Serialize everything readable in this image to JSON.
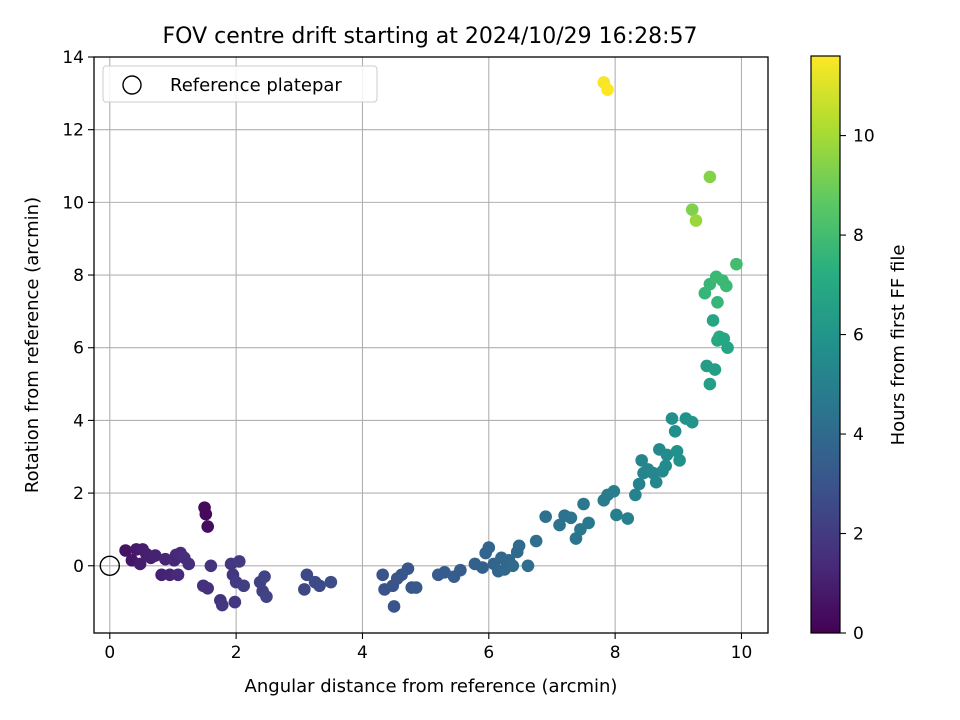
{
  "chart_data": {
    "type": "scatter",
    "title": "FOV centre drift starting at 2024/10/29 16:28:57",
    "xlabel": "Angular distance from reference (arcmin)",
    "ylabel": "Rotation from reference (arcmin)",
    "xlim": [
      -0.25,
      10.42
    ],
    "ylim": [
      -1.85,
      14.0
    ],
    "xticks": [
      0,
      2,
      4,
      6,
      8,
      10
    ],
    "yticks": [
      0,
      2,
      4,
      6,
      8,
      10,
      12,
      14
    ],
    "grid": true,
    "legend": {
      "placement": "top-left",
      "entries": [
        "Reference platepar"
      ]
    },
    "reference_point": {
      "x": 0,
      "y": 0
    },
    "colorbar": {
      "label": "Hours from first FF file",
      "colormap": "viridis",
      "range": [
        0,
        11.6
      ],
      "ticks": [
        0,
        2,
        4,
        6,
        8,
        10
      ]
    },
    "series": [
      {
        "values": [
          {
            "x": 0.25,
            "y": 0.42,
            "h": 0.6
          },
          {
            "x": 0.35,
            "y": 0.15,
            "h": 0.7
          },
          {
            "x": 0.42,
            "y": 0.45,
            "h": 0.8
          },
          {
            "x": 0.48,
            "y": 0.05,
            "h": 0.9
          },
          {
            "x": 0.52,
            "y": 0.45,
            "h": 0.9
          },
          {
            "x": 0.58,
            "y": 0.32,
            "h": 1.0
          },
          {
            "x": 0.65,
            "y": 0.22,
            "h": 1.0
          },
          {
            "x": 0.72,
            "y": 0.28,
            "h": 1.1
          },
          {
            "x": 0.82,
            "y": -0.25,
            "h": 1.1
          },
          {
            "x": 0.88,
            "y": 0.18,
            "h": 1.2
          },
          {
            "x": 0.95,
            "y": -0.25,
            "h": 1.2
          },
          {
            "x": 1.02,
            "y": 0.15,
            "h": 1.3
          },
          {
            "x": 1.05,
            "y": 0.3,
            "h": 1.3
          },
          {
            "x": 1.12,
            "y": 0.35,
            "h": 1.4
          },
          {
            "x": 1.08,
            "y": -0.25,
            "h": 1.4
          },
          {
            "x": 1.18,
            "y": 0.22,
            "h": 1.5
          },
          {
            "x": 1.25,
            "y": 0.05,
            "h": 1.5
          },
          {
            "x": 1.5,
            "y": 1.6,
            "h": 0.3
          },
          {
            "x": 1.52,
            "y": 1.42,
            "h": 0.3
          },
          {
            "x": 1.55,
            "y": 1.08,
            "h": 0.4
          },
          {
            "x": 1.48,
            "y": -0.55,
            "h": 1.6
          },
          {
            "x": 1.55,
            "y": -0.62,
            "h": 1.6
          },
          {
            "x": 1.6,
            "y": 0.0,
            "h": 1.7
          },
          {
            "x": 1.75,
            "y": -0.95,
            "h": 1.7
          },
          {
            "x": 1.78,
            "y": -1.08,
            "h": 1.8
          },
          {
            "x": 1.92,
            "y": 0.05,
            "h": 1.8
          },
          {
            "x": 1.95,
            "y": -0.25,
            "h": 1.9
          },
          {
            "x": 1.98,
            "y": -1.0,
            "h": 1.9
          },
          {
            "x": 2.0,
            "y": -0.45,
            "h": 2.0
          },
          {
            "x": 2.05,
            "y": 0.12,
            "h": 2.0
          },
          {
            "x": 2.12,
            "y": -0.55,
            "h": 2.1
          },
          {
            "x": 2.38,
            "y": -0.45,
            "h": 2.2
          },
          {
            "x": 2.42,
            "y": -0.7,
            "h": 2.2
          },
          {
            "x": 2.45,
            "y": -0.3,
            "h": 2.3
          },
          {
            "x": 2.48,
            "y": -0.85,
            "h": 2.3
          },
          {
            "x": 3.08,
            "y": -0.65,
            "h": 2.5
          },
          {
            "x": 3.12,
            "y": -0.25,
            "h": 2.5
          },
          {
            "x": 3.25,
            "y": -0.45,
            "h": 2.6
          },
          {
            "x": 3.32,
            "y": -0.55,
            "h": 2.6
          },
          {
            "x": 3.5,
            "y": -0.45,
            "h": 2.7
          },
          {
            "x": 4.32,
            "y": -0.25,
            "h": 2.9
          },
          {
            "x": 4.35,
            "y": -0.65,
            "h": 2.9
          },
          {
            "x": 4.48,
            "y": -0.55,
            "h": 3.0
          },
          {
            "x": 4.5,
            "y": -1.12,
            "h": 3.0
          },
          {
            "x": 4.55,
            "y": -0.35,
            "h": 3.0
          },
          {
            "x": 4.62,
            "y": -0.25,
            "h": 3.1
          },
          {
            "x": 4.72,
            "y": -0.08,
            "h": 3.1
          },
          {
            "x": 4.78,
            "y": -0.6,
            "h": 3.1
          },
          {
            "x": 4.85,
            "y": -0.6,
            "h": 3.2
          },
          {
            "x": 5.2,
            "y": -0.25,
            "h": 3.3
          },
          {
            "x": 5.3,
            "y": -0.18,
            "h": 3.3
          },
          {
            "x": 5.45,
            "y": -0.3,
            "h": 3.4
          },
          {
            "x": 5.55,
            "y": -0.12,
            "h": 3.4
          },
          {
            "x": 5.78,
            "y": 0.05,
            "h": 3.6
          },
          {
            "x": 5.9,
            "y": -0.05,
            "h": 3.6
          },
          {
            "x": 5.95,
            "y": 0.35,
            "h": 3.7
          },
          {
            "x": 6.0,
            "y": 0.5,
            "h": 3.7
          },
          {
            "x": 6.08,
            "y": 0.05,
            "h": 3.7
          },
          {
            "x": 6.15,
            "y": -0.15,
            "h": 3.8
          },
          {
            "x": 6.2,
            "y": 0.22,
            "h": 3.8
          },
          {
            "x": 6.25,
            "y": -0.1,
            "h": 3.9
          },
          {
            "x": 6.32,
            "y": 0.15,
            "h": 3.9
          },
          {
            "x": 6.38,
            "y": 0.0,
            "h": 4.0
          },
          {
            "x": 6.45,
            "y": 0.38,
            "h": 4.0
          },
          {
            "x": 6.48,
            "y": 0.55,
            "h": 4.0
          },
          {
            "x": 6.62,
            "y": 0.0,
            "h": 4.1
          },
          {
            "x": 6.75,
            "y": 0.68,
            "h": 4.2
          },
          {
            "x": 6.9,
            "y": 1.35,
            "h": 4.3
          },
          {
            "x": 7.12,
            "y": 1.12,
            "h": 4.4
          },
          {
            "x": 7.2,
            "y": 1.38,
            "h": 4.4
          },
          {
            "x": 7.3,
            "y": 1.32,
            "h": 4.5
          },
          {
            "x": 7.38,
            "y": 0.75,
            "h": 4.5
          },
          {
            "x": 7.45,
            "y": 1.0,
            "h": 4.6
          },
          {
            "x": 7.5,
            "y": 1.7,
            "h": 4.6
          },
          {
            "x": 7.58,
            "y": 1.18,
            "h": 4.7
          },
          {
            "x": 7.82,
            "y": 1.8,
            "h": 4.8
          },
          {
            "x": 7.88,
            "y": 1.95,
            "h": 4.8
          },
          {
            "x": 7.98,
            "y": 2.05,
            "h": 4.9
          },
          {
            "x": 8.02,
            "y": 1.4,
            "h": 4.9
          },
          {
            "x": 8.2,
            "y": 1.3,
            "h": 5.0
          },
          {
            "x": 8.32,
            "y": 1.95,
            "h": 5.1
          },
          {
            "x": 8.38,
            "y": 2.25,
            "h": 5.1
          },
          {
            "x": 8.42,
            "y": 2.9,
            "h": 5.2
          },
          {
            "x": 8.45,
            "y": 2.55,
            "h": 5.2
          },
          {
            "x": 8.52,
            "y": 2.65,
            "h": 5.2
          },
          {
            "x": 8.6,
            "y": 2.55,
            "h": 5.3
          },
          {
            "x": 8.65,
            "y": 2.3,
            "h": 5.3
          },
          {
            "x": 8.7,
            "y": 3.2,
            "h": 5.4
          },
          {
            "x": 8.75,
            "y": 2.6,
            "h": 5.4
          },
          {
            "x": 8.8,
            "y": 2.75,
            "h": 5.5
          },
          {
            "x": 8.82,
            "y": 3.05,
            "h": 5.5
          },
          {
            "x": 8.9,
            "y": 4.05,
            "h": 5.7
          },
          {
            "x": 8.95,
            "y": 3.7,
            "h": 5.7
          },
          {
            "x": 8.98,
            "y": 3.15,
            "h": 5.8
          },
          {
            "x": 9.02,
            "y": 2.9,
            "h": 5.8
          },
          {
            "x": 9.12,
            "y": 4.05,
            "h": 5.9
          },
          {
            "x": 9.22,
            "y": 3.95,
            "h": 6.0
          },
          {
            "x": 9.45,
            "y": 5.5,
            "h": 6.4
          },
          {
            "x": 9.5,
            "y": 5.0,
            "h": 6.5
          },
          {
            "x": 9.55,
            "y": 6.75,
            "h": 6.8
          },
          {
            "x": 9.58,
            "y": 5.4,
            "h": 6.5
          },
          {
            "x": 9.62,
            "y": 6.2,
            "h": 6.9
          },
          {
            "x": 9.65,
            "y": 6.3,
            "h": 7.1
          },
          {
            "x": 9.72,
            "y": 6.25,
            "h": 6.9
          },
          {
            "x": 9.78,
            "y": 6.0,
            "h": 6.8
          },
          {
            "x": 9.42,
            "y": 7.5,
            "h": 7.6
          },
          {
            "x": 9.5,
            "y": 7.75,
            "h": 7.7
          },
          {
            "x": 9.6,
            "y": 7.95,
            "h": 7.8
          },
          {
            "x": 9.62,
            "y": 7.25,
            "h": 7.6
          },
          {
            "x": 9.7,
            "y": 7.85,
            "h": 7.8
          },
          {
            "x": 9.76,
            "y": 7.7,
            "h": 7.8
          },
          {
            "x": 9.92,
            "y": 8.3,
            "h": 8.0
          },
          {
            "x": 9.22,
            "y": 9.8,
            "h": 9.3
          },
          {
            "x": 9.28,
            "y": 9.5,
            "h": 9.8
          },
          {
            "x": 9.5,
            "y": 10.7,
            "h": 9.4
          },
          {
            "x": 7.82,
            "y": 13.3,
            "h": 11.5
          },
          {
            "x": 7.88,
            "y": 13.1,
            "h": 11.6
          }
        ]
      }
    ]
  }
}
